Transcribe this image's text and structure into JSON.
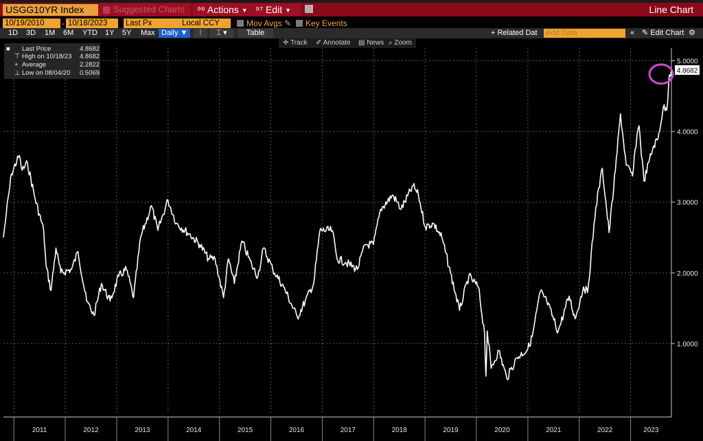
{
  "toolbar": {
    "ticker": "USGG10YR Index",
    "suggested": "Suggested Charts",
    "actions": "Actions",
    "edit": "Edit",
    "chart_type": "Line Chart"
  },
  "range": {
    "start": "10/19/2010",
    "end": "10/18/2023",
    "field": "Last Px",
    "currency": "Local CCY",
    "mov_avgs": "Mov Avgs",
    "key_events": "Key Events"
  },
  "periods": [
    "1D",
    "3D",
    "1M",
    "6M",
    "YTD",
    "1Y",
    "5Y",
    "Max"
  ],
  "frequency": "Daily",
  "table_label": "Table",
  "related_data": "Related Dat",
  "add_data_placeholder": "Add Data",
  "edit_chart": "Edit Chart",
  "tools": [
    "Track",
    "Annotate",
    "News",
    "Zoom"
  ],
  "legend": {
    "last_label": "Last Price",
    "last_value": "4.8682",
    "high_label": "High on 10/18/23",
    "high_value": "4.8682",
    "avg_label": "Average",
    "avg_value": "2.2822",
    "low_label": "Low on 08/04/20",
    "low_value": "0.5069"
  },
  "colors": {
    "line": "#ffffff",
    "accent": "#f0a430",
    "toolbar": "#8b0a1a",
    "highlight_circle": "#d24bd2"
  },
  "chart_data": {
    "type": "line",
    "x": [
      "2010-10-19",
      "2010-11-09",
      "2010-12-15",
      "2011-02-08",
      "2011-03-01",
      "2011-04-08",
      "2011-06-01",
      "2011-08-01",
      "2011-08-18",
      "2011-09-22",
      "2011-10-27",
      "2011-12-01",
      "2012-02-15",
      "2012-04-01",
      "2012-06-01",
      "2012-07-24",
      "2012-09-14",
      "2012-11-15",
      "2013-01-15",
      "2013-03-11",
      "2013-05-01",
      "2013-06-20",
      "2013-09-05",
      "2013-10-20",
      "2013-12-31",
      "2014-03-01",
      "2014-06-01",
      "2014-08-15",
      "2014-10-15",
      "2014-12-01",
      "2015-01-30",
      "2015-03-06",
      "2015-04-17",
      "2015-06-10",
      "2015-08-20",
      "2015-10-01",
      "2015-11-10",
      "2016-01-15",
      "2016-04-01",
      "2016-07-08",
      "2016-09-01",
      "2016-11-01",
      "2016-12-15",
      "2017-03-13",
      "2017-04-15",
      "2017-06-15",
      "2017-09-07",
      "2017-11-01",
      "2017-12-30",
      "2018-02-20",
      "2018-05-17",
      "2018-07-15",
      "2018-10-08",
      "2018-11-15",
      "2019-01-03",
      "2019-03-01",
      "2019-05-01",
      "2019-07-01",
      "2019-09-03",
      "2019-11-08",
      "2020-01-15",
      "2020-02-28",
      "2020-03-09",
      "2020-03-18",
      "2020-04-15",
      "2020-06-08",
      "2020-08-04",
      "2020-10-15",
      "2020-12-31",
      "2021-02-01",
      "2021-03-31",
      "2021-05-15",
      "2021-08-04",
      "2021-10-21",
      "2021-12-03",
      "2022-01-31",
      "2022-03-01",
      "2022-04-29",
      "2022-06-14",
      "2022-08-01",
      "2022-09-15",
      "2022-10-21",
      "2022-12-01",
      "2023-01-15",
      "2023-02-15",
      "2023-03-02",
      "2023-04-06",
      "2023-05-15",
      "2023-06-15",
      "2023-07-15",
      "2023-08-21",
      "2023-09-15",
      "2023-10-03",
      "2023-10-18"
    ],
    "values": [
      2.5,
      2.85,
      3.4,
      3.66,
      3.45,
      3.55,
      3.05,
      2.6,
      2.1,
      1.75,
      2.35,
      2.0,
      2.05,
      2.3,
      1.6,
      1.4,
      1.85,
      1.6,
      1.95,
      2.05,
      1.65,
      2.5,
      2.95,
      2.6,
      3.03,
      2.7,
      2.55,
      2.4,
      2.2,
      2.2,
      1.65,
      2.2,
      1.85,
      2.45,
      2.1,
      1.95,
      2.35,
      2.05,
      1.8,
      1.37,
      1.6,
      1.85,
      2.6,
      2.6,
      2.2,
      2.15,
      2.05,
      2.4,
      2.4,
      2.9,
      3.1,
      2.9,
      3.23,
      3.1,
      2.65,
      2.7,
      2.5,
      2.0,
      1.47,
      1.95,
      1.8,
      1.15,
      0.54,
      1.18,
      0.65,
      0.9,
      0.51,
      0.8,
      0.92,
      1.1,
      1.74,
      1.6,
      1.17,
      1.67,
      1.35,
      1.8,
      1.72,
      2.93,
      3.48,
      2.57,
      3.45,
      4.25,
      3.52,
      3.37,
      3.95,
      4.08,
      3.3,
      3.6,
      3.8,
      3.9,
      4.34,
      4.3,
      4.8,
      4.8682
    ],
    "xlabel": "",
    "ylabel": "",
    "ylim": [
      0.0,
      5.18
    ],
    "x_ticks": [
      "2011",
      "2012",
      "2013",
      "2014",
      "2015",
      "2016",
      "2017",
      "2018",
      "2019",
      "2020",
      "2021",
      "2022",
      "2023"
    ],
    "y_ticks": [
      "1.0000",
      "2.0000",
      "3.0000",
      "4.0000",
      "5.0000"
    ],
    "last_value_label": "4.8682",
    "grid": true
  }
}
